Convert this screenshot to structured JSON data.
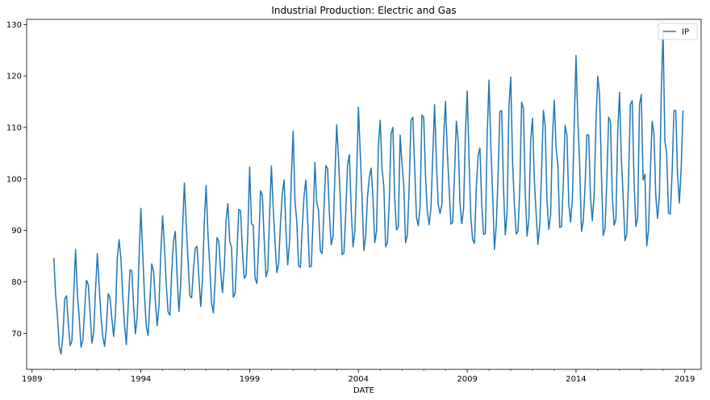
{
  "chart_data": {
    "type": "line",
    "title": "Industrial Production: Electric and Gas",
    "xlabel": "DATE",
    "ylabel": "",
    "xlim": [
      1988.75,
      2019.75
    ],
    "ylim": [
      63,
      131
    ],
    "x_ticks": [
      1989,
      1994,
      1999,
      2004,
      2009,
      2014,
      2019
    ],
    "y_ticks": [
      70,
      80,
      90,
      100,
      110,
      120,
      130
    ],
    "grid": false,
    "legend": {
      "position": "top-right",
      "entries": [
        "IP"
      ]
    },
    "series": [
      {
        "name": "IP",
        "color": "#1f77b4",
        "start": "1990-01",
        "frequency": "monthly",
        "values": [
          84.6,
          77.5,
          73.3,
          67.4,
          66.0,
          69.5,
          76.7,
          77.3,
          71.9,
          67.6,
          68.6,
          77.9,
          86.3,
          77.6,
          73.1,
          67.3,
          68.6,
          74.6,
          80.3,
          79.5,
          73.9,
          68.1,
          70.2,
          78.5,
          85.5,
          79.2,
          73.4,
          69.3,
          67.5,
          71.3,
          77.7,
          76.9,
          72.9,
          69.4,
          73.7,
          84.6,
          88.2,
          84.5,
          77.3,
          71.6,
          67.8,
          75.2,
          82.3,
          82.2,
          75.3,
          69.9,
          73.3,
          84.5,
          94.3,
          85.7,
          77.4,
          71.3,
          69.6,
          76.1,
          83.5,
          82.1,
          76.1,
          71.5,
          75.4,
          85.7,
          92.8,
          86.9,
          79.6,
          74.2,
          73.5,
          81.7,
          87.9,
          89.8,
          81.2,
          74.2,
          79.7,
          90.4,
          99.2,
          91.4,
          84.3,
          77.3,
          76.9,
          82.4,
          86.5,
          86.9,
          80.8,
          75.2,
          80.7,
          91.6,
          98.7,
          89.4,
          83.0,
          75.8,
          74.0,
          80.5,
          88.6,
          87.8,
          82.1,
          77.9,
          82.6,
          92.0,
          95.2,
          87.9,
          86.7,
          77.0,
          77.8,
          85.4,
          94.1,
          93.8,
          86.1,
          80.7,
          81.2,
          89.5,
          102.3,
          91.3,
          91.0,
          80.7,
          79.7,
          87.3,
          97.7,
          96.9,
          88.4,
          81.0,
          82.3,
          92.9,
          102.5,
          94.4,
          87.7,
          81.8,
          83.6,
          91.4,
          97.1,
          99.8,
          90.2,
          83.3,
          87.7,
          100.4,
          109.3,
          95.7,
          91.7,
          83.1,
          82.8,
          90.5,
          96.7,
          99.8,
          91.7,
          82.9,
          83.0,
          92.3,
          103.2,
          95.4,
          93.9,
          86.0,
          85.5,
          94.3,
          102.6,
          102.0,
          93.1,
          87.2,
          88.9,
          100.3,
          110.5,
          104.0,
          96.0,
          85.3,
          85.6,
          93.3,
          102.6,
          104.7,
          94.3,
          86.8,
          89.7,
          100.6,
          113.9,
          105.0,
          96.3,
          86.1,
          88.9,
          96.5,
          100.3,
          102.1,
          96.3,
          87.6,
          89.9,
          106.5,
          111.4,
          102.0,
          98.5,
          86.8,
          87.7,
          95.5,
          108.8,
          110.0,
          96.4,
          90.1,
          90.7,
          108.5,
          103.0,
          98.8,
          87.6,
          89.2,
          98.7,
          111.4,
          112.0,
          102.4,
          92.6,
          90.9,
          94.6,
          112.4,
          112.0,
          100.6,
          93.6,
          91.1,
          94.4,
          104.6,
          114.4,
          103.3,
          95.0,
          93.3,
          95.0,
          108.0,
          115.1,
          105.3,
          98.3,
          91.2,
          91.6,
          101.0,
          111.2,
          107.4,
          95.3,
          91.3,
          94.3,
          108.9,
          117.1,
          103.8,
          92.4,
          88.2,
          87.5,
          98.3,
          104.6,
          106.0,
          95.1,
          89.2,
          89.4,
          108.3,
          119.2,
          106.5,
          97.2,
          86.3,
          90.9,
          100.3,
          113.1,
          113.3,
          98.3,
          89.1,
          93.7,
          113.9,
          119.8,
          103.6,
          95.0,
          89.3,
          89.8,
          98.2,
          114.9,
          113.7,
          97.3,
          88.9,
          92.1,
          107.5,
          111.8,
          100.0,
          93.3,
          87.3,
          91.0,
          101.3,
          113.3,
          110.4,
          95.7,
          90.2,
          93.0,
          108.1,
          115.3,
          106.1,
          102.7,
          90.6,
          90.7,
          99.3,
          110.4,
          108.5,
          95.2,
          91.6,
          96.1,
          110.2,
          124.0,
          111.5,
          103.0,
          89.8,
          91.8,
          98.7,
          108.6,
          108.5,
          96.3,
          91.9,
          97.0,
          111.0,
          120.0,
          116.4,
          101.1,
          89.0,
          90.4,
          99.7,
          112.0,
          111.2,
          96.8,
          91.0,
          92.1,
          109.1,
          116.8,
          104.0,
          96.5,
          88.0,
          89.3,
          100.3,
          114.5,
          115.2,
          99.8,
          90.8,
          92.5,
          114.4,
          116.4,
          99.8,
          100.9,
          87.0,
          90.1,
          101.5,
          111.2,
          108.7,
          96.6,
          92.3,
          96.7,
          116.4,
          128.9,
          107.4,
          104.9,
          93.4,
          93.2,
          101.2,
          113.3,
          113.3,
          100.9,
          95.3,
          102.1,
          113.3
        ]
      }
    ]
  }
}
